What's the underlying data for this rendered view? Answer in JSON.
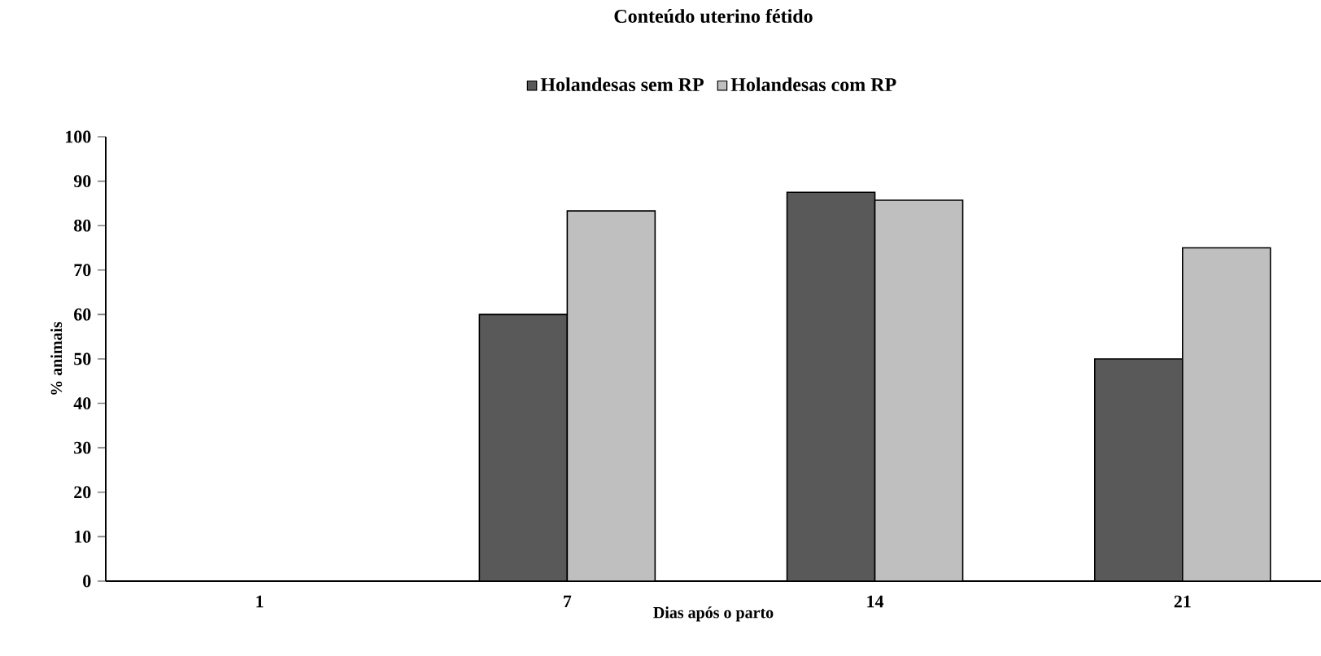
{
  "chart_data": {
    "type": "bar",
    "title": "Conteúdo uterino fétido",
    "xlabel": "Dias após o parto",
    "ylabel": "% animais",
    "categories": [
      "1",
      "7",
      "14",
      "21"
    ],
    "series": [
      {
        "name": "Holandesas sem RP",
        "color": "#595959",
        "values": [
          0,
          60,
          87.5,
          50
        ]
      },
      {
        "name": "Holandesas com RP",
        "color": "#bfbfbf",
        "values": [
          0,
          83.3,
          85.7,
          75
        ]
      }
    ],
    "ylim": [
      0,
      100
    ],
    "yticks": [
      0,
      10,
      20,
      30,
      40,
      50,
      60,
      70,
      80,
      90,
      100
    ],
    "legend": "top"
  }
}
